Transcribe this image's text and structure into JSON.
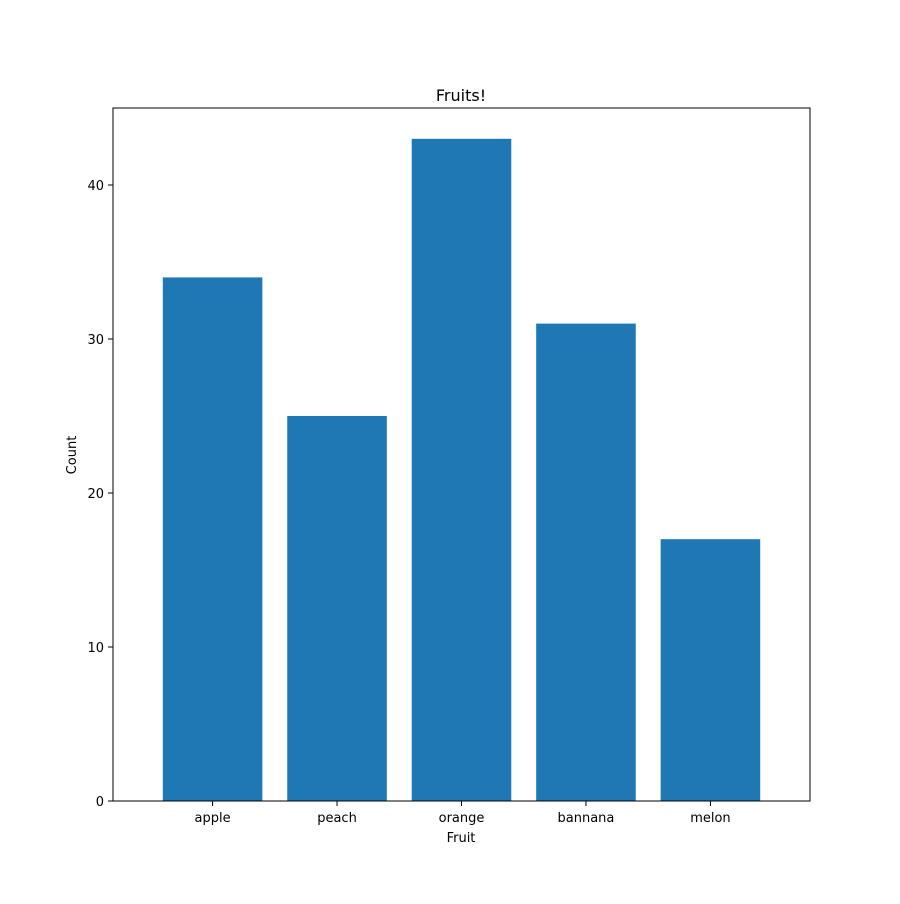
{
  "chart_data": {
    "type": "bar",
    "title": "Fruits!",
    "xlabel": "Fruit",
    "ylabel": "Count",
    "categories": [
      "apple",
      "peach",
      "orange",
      "bannana",
      "melon"
    ],
    "values": [
      34,
      25,
      43,
      31,
      17
    ],
    "ylim": [
      0,
      45
    ],
    "yticks": [
      0,
      10,
      20,
      30,
      40
    ],
    "grid": false,
    "legend": "none",
    "bar_color": "#1f77b4"
  }
}
